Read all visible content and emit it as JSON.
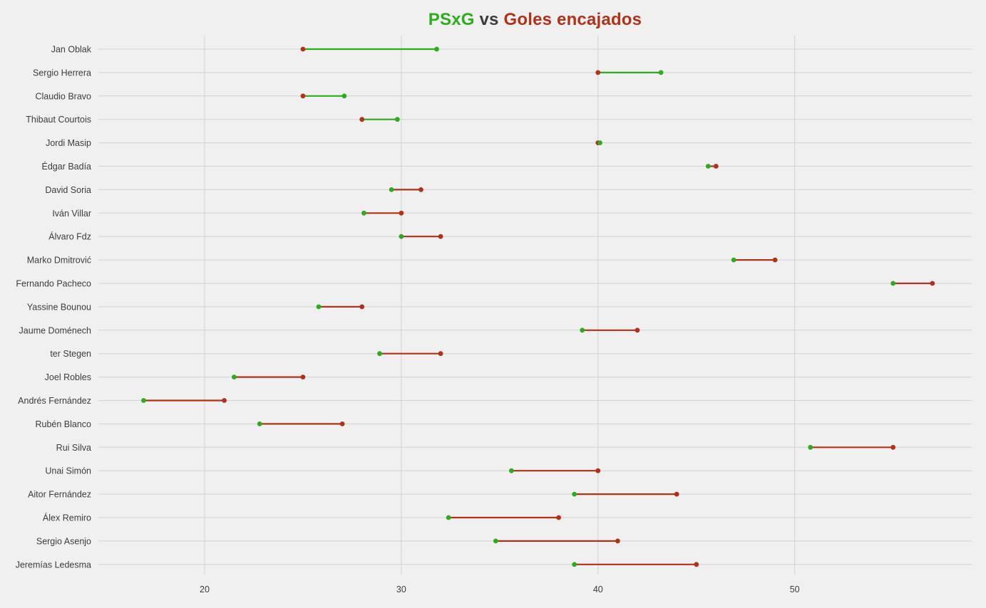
{
  "title": {
    "part1": "PSxG",
    "part2": " vs ",
    "part3": "Goles encajados",
    "color1": "#2eab1f",
    "color2": "#3c3c3c",
    "color3": "#b2311b"
  },
  "colors": {
    "psxg": "#2eab1f",
    "goals": "#b2311b",
    "background": "#f0f0f0",
    "grid": "#d2d2d2",
    "text": "#3c3c3c"
  },
  "chart_data": {
    "type": "dumbbell",
    "title": "PSxG vs Goles encajados",
    "xlabel": "",
    "ylabel": "",
    "xlim": [
      14.6,
      59.0
    ],
    "x_ticks": [
      20,
      30,
      40,
      50
    ],
    "grid": true,
    "legend": "none",
    "series": [
      {
        "name": "PSxG",
        "color": "#2eab1f"
      },
      {
        "name": "Goles encajados",
        "color": "#b2311b"
      }
    ],
    "players": [
      {
        "name": "Jan Oblak",
        "psxg": 31.8,
        "goals": 25
      },
      {
        "name": "Sergio Herrera",
        "psxg": 43.2,
        "goals": 40
      },
      {
        "name": "Claudio Bravo",
        "psxg": 27.1,
        "goals": 25
      },
      {
        "name": "Thibaut Courtois",
        "psxg": 29.8,
        "goals": 28
      },
      {
        "name": "Jordi Masip",
        "psxg": 40.1,
        "goals": 40
      },
      {
        "name": "Édgar Badía",
        "psxg": 45.6,
        "goals": 46
      },
      {
        "name": "David Soria",
        "psxg": 29.5,
        "goals": 31
      },
      {
        "name": "Iván Villar",
        "psxg": 28.1,
        "goals": 30
      },
      {
        "name": "Álvaro Fdz",
        "psxg": 30.0,
        "goals": 32
      },
      {
        "name": "Marko Dmitrović",
        "psxg": 46.9,
        "goals": 49
      },
      {
        "name": "Fernando Pacheco",
        "psxg": 55.0,
        "goals": 57
      },
      {
        "name": "Yassine Bounou",
        "psxg": 25.8,
        "goals": 28
      },
      {
        "name": "Jaume Doménech",
        "psxg": 39.2,
        "goals": 42
      },
      {
        "name": "ter Stegen",
        "psxg": 28.9,
        "goals": 32
      },
      {
        "name": "Joel Robles",
        "psxg": 21.5,
        "goals": 25
      },
      {
        "name": "Andrés Fernández",
        "psxg": 16.9,
        "goals": 21
      },
      {
        "name": "Rubén Blanco",
        "psxg": 22.8,
        "goals": 27
      },
      {
        "name": "Rui Silva",
        "psxg": 50.8,
        "goals": 55
      },
      {
        "name": "Unai Simón",
        "psxg": 35.6,
        "goals": 40
      },
      {
        "name": "Aitor Fernández",
        "psxg": 38.8,
        "goals": 44
      },
      {
        "name": "Álex Remiro",
        "psxg": 32.4,
        "goals": 38
      },
      {
        "name": "Sergio Asenjo",
        "psxg": 34.8,
        "goals": 41
      },
      {
        "name": "Jeremías Ledesma",
        "psxg": 38.8,
        "goals": 45
      }
    ]
  }
}
